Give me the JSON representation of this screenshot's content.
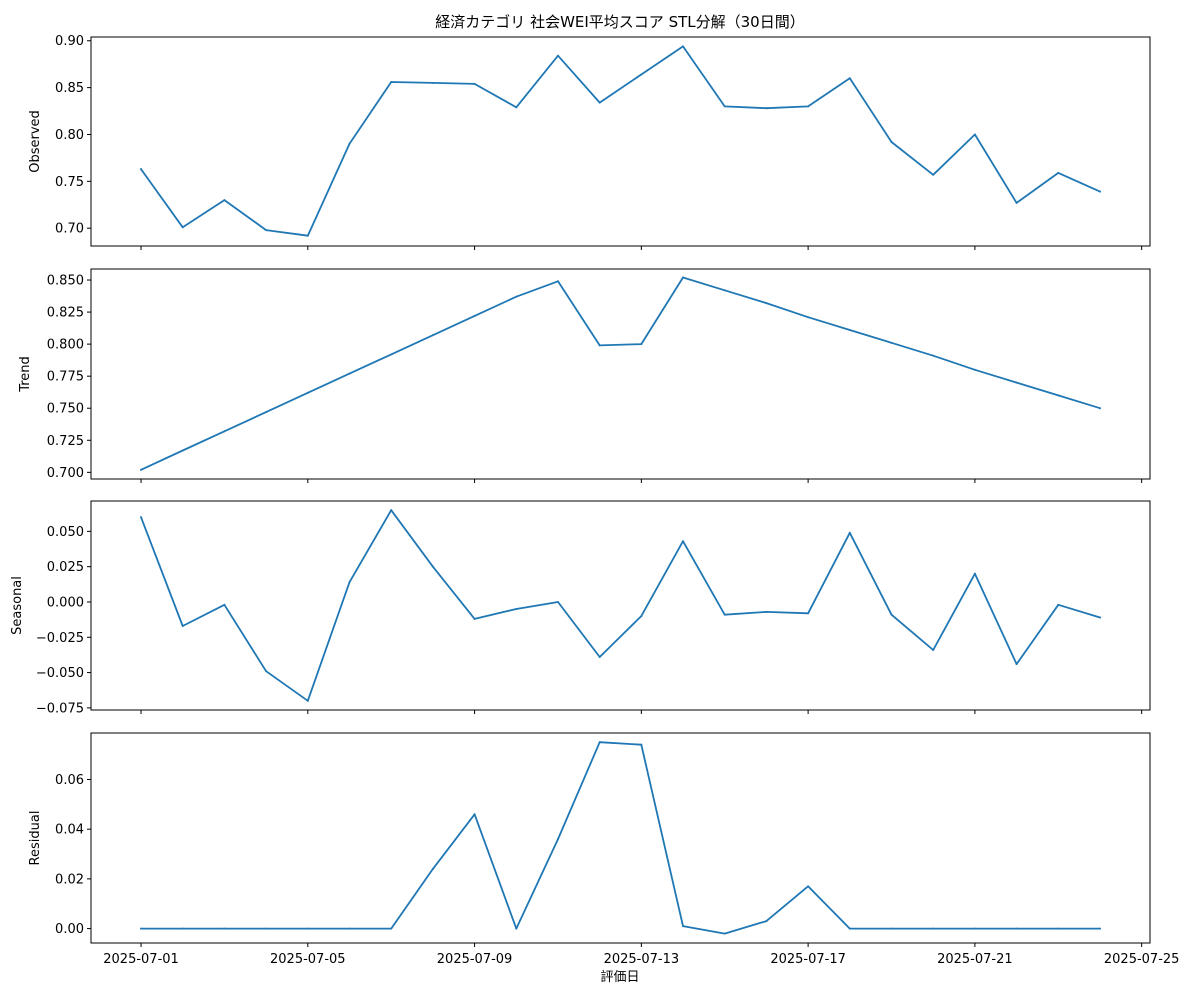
{
  "chart_data": {
    "type": "line",
    "title": "経済カテゴリ 社会WEI平均スコア STL分解（30日間）",
    "xlabel": "評価日",
    "line_color": "#1f77b4",
    "x": [
      "2025-07-01",
      "2025-07-02",
      "2025-07-03",
      "2025-07-04",
      "2025-07-05",
      "2025-07-06",
      "2025-07-07",
      "2025-07-08",
      "2025-07-09",
      "2025-07-10",
      "2025-07-11",
      "2025-07-12",
      "2025-07-13",
      "2025-07-14",
      "2025-07-15",
      "2025-07-16",
      "2025-07-17",
      "2025-07-18",
      "2025-07-19",
      "2025-07-20",
      "2025-07-21",
      "2025-07-22",
      "2025-07-23",
      "2025-07-24"
    ],
    "x_ticks": [
      "2025-07-01",
      "2025-07-05",
      "2025-07-09",
      "2025-07-13",
      "2025-07-17",
      "2025-07-21",
      "2025-07-25"
    ],
    "xlim": [
      "2025-06-29 19:12",
      "2025-07-25 04:48"
    ],
    "panels": [
      {
        "ylabel": "Observed",
        "ylim": [
          0.681,
          0.904
        ],
        "y_ticks": [
          "0.70",
          "0.75",
          "0.80",
          "0.85",
          "0.90"
        ],
        "values": [
          0.763,
          0.701,
          0.73,
          0.698,
          0.692,
          0.79,
          0.856,
          0.855,
          0.854,
          0.829,
          0.884,
          0.834,
          0.864,
          0.894,
          0.83,
          0.828,
          0.83,
          0.86,
          0.792,
          0.757,
          0.8,
          0.727,
          0.759,
          0.739
        ]
      },
      {
        "ylabel": "Trend",
        "ylim": [
          0.6948,
          0.8586
        ],
        "y_ticks": [
          "0.700",
          "0.725",
          "0.750",
          "0.775",
          "0.800",
          "0.825",
          "0.850"
        ],
        "values": [
          0.702,
          0.717,
          0.732,
          0.747,
          0.762,
          0.777,
          0.792,
          0.807,
          0.822,
          0.837,
          0.849,
          0.799,
          0.8,
          0.852,
          0.842,
          0.832,
          0.821,
          0.811,
          0.801,
          0.791,
          0.78,
          0.77,
          0.76,
          0.75
        ]
      },
      {
        "ylabel": "Seasonal",
        "ylim": [
          -0.0765,
          0.0715
        ],
        "y_ticks": [
          "0.050",
          "0.025",
          "0.000",
          "−0.025",
          "−0.050",
          "−0.075"
        ],
        "values": [
          0.06,
          -0.017,
          -0.002,
          -0.049,
          -0.07,
          0.014,
          0.065,
          0.025,
          -0.012,
          -0.005,
          0.0,
          -0.039,
          -0.01,
          0.043,
          -0.009,
          -0.007,
          -0.008,
          0.049,
          -0.009,
          -0.034,
          0.02,
          -0.044,
          -0.002,
          -0.011
        ]
      },
      {
        "ylabel": "Residual",
        "ylim": [
          -0.0058,
          0.0787
        ],
        "y_ticks": [
          "0.00",
          "0.02",
          "0.04",
          "0.06"
        ],
        "values": [
          0.0,
          0.0,
          0.0,
          0.0,
          0.0,
          0.0,
          0.0,
          0.024,
          0.046,
          0.0,
          0.036,
          0.075,
          0.074,
          0.001,
          -0.002,
          0.003,
          0.017,
          0.0,
          0.0,
          0.0,
          0.0,
          0.0,
          0.0,
          0.0
        ]
      }
    ]
  }
}
